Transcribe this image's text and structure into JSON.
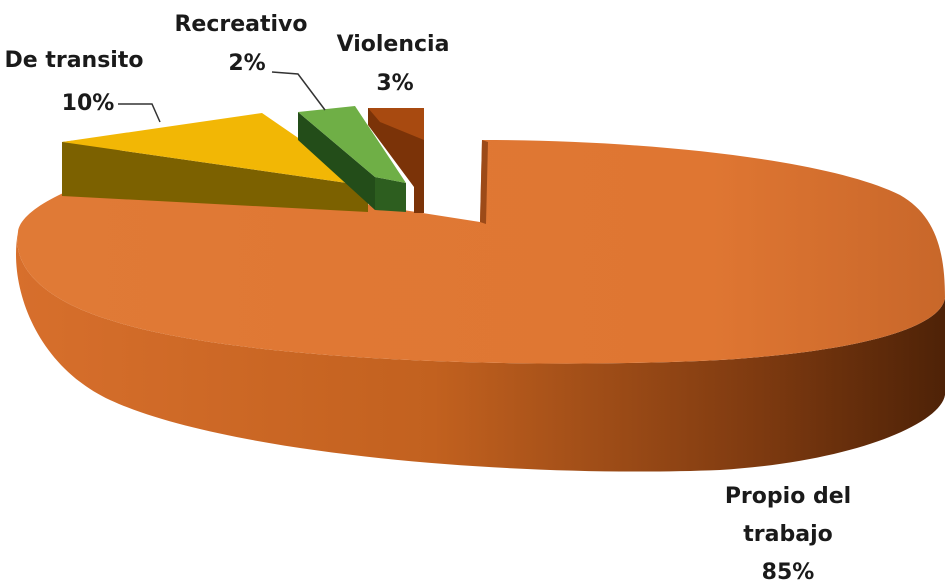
{
  "chart_data": {
    "type": "pie",
    "style": "3d-exploded",
    "title": "",
    "legend": "none",
    "slices": [
      {
        "category_lines": [
          "Propio del",
          "trabajo"
        ],
        "value": 85,
        "value_label": "85%",
        "color": "#E27832"
      },
      {
        "category_lines": [
          "De transito"
        ],
        "value": 10,
        "value_label": "10%",
        "color": "#F2B705"
      },
      {
        "category_lines": [
          "Recreativo"
        ],
        "value": 2,
        "value_label": "2%",
        "color": "#6FAF46"
      },
      {
        "category_lines": [
          "Violencia"
        ],
        "value": 3,
        "value_label": "3%",
        "color": "#A84A10"
      }
    ]
  }
}
